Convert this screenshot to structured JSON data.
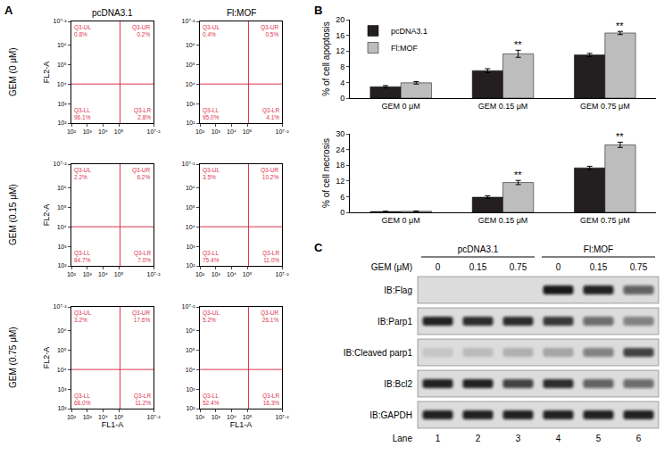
{
  "panel_labels": [
    "A",
    "B",
    "C"
  ],
  "chart_data": [
    {
      "type": "quadrant",
      "columns": [
        "pcDNA3.1",
        "Fl:MOF"
      ],
      "rows": [
        "GEM (0 μM)",
        "GEM (0.15 μM)",
        "GEM (0.75 μM)"
      ],
      "x_label": "FL1-A",
      "y_label": "FL2-A",
      "log": true,
      "xlim": [
        100,
        15848932
      ],
      "ylim": [
        100,
        15848932
      ],
      "xticks": [
        {
          "value": 100,
          "label": "10²"
        },
        {
          "value": 1000,
          "label": "10³"
        },
        {
          "value": 10000,
          "label": "10⁴"
        },
        {
          "value": 100000,
          "label": "10⁵"
        },
        {
          "value": 15848932,
          "label": "10⁷·²"
        }
      ],
      "yticks": [
        {
          "value": 100,
          "label": "10²"
        },
        {
          "value": 1000,
          "label": "10³"
        },
        {
          "value": 10000,
          "label": "10⁴"
        },
        {
          "value": 100000,
          "label": "10⁵"
        },
        {
          "value": 1000000,
          "label": "10⁶"
        },
        {
          "value": 15848932,
          "label": "10⁷·²"
        }
      ],
      "gate_x": 120000,
      "gate_y": 10000,
      "color": "#e0344f",
      "plots": [
        {
          "quadrants": {
            "names": [
              "Q3-UL",
              "Q3-UR",
              "Q3-LL",
              "Q3-LR"
            ],
            "values": [
              0.8,
              0.2,
              96.1,
              2.8
            ],
            "value_labels": [
              "0.8%",
              "0.2%",
              "96.1%",
              "2.8%"
            ]
          }
        },
        {
          "quadrants": {
            "names": [
              "Q3-UL",
              "Q3-UR",
              "Q3-LL",
              "Q3-LR"
            ],
            "values": [
              0.4,
              0.5,
              95.0,
              4.1
            ],
            "value_labels": [
              "0.4%",
              "0.5%",
              "95.0%",
              "4.1%"
            ]
          }
        },
        {
          "quadrants": {
            "names": [
              "Q3-UL",
              "Q3-UR",
              "Q3-LL",
              "Q3-LR"
            ],
            "values": [
              2.2,
              6.2,
              84.7,
              7.0
            ],
            "value_labels": [
              "2.2%",
              "6.2%",
              "84.7%",
              "7.0%"
            ]
          }
        },
        {
          "quadrants": {
            "names": [
              "Q3-UL",
              "Q3-UR",
              "Q3-LL",
              "Q3-LR"
            ],
            "values": [
              3.5,
              10.2,
              75.4,
              11.0
            ],
            "value_labels": [
              "3.5%",
              "10.2%",
              "75.4%",
              "11.0%"
            ]
          }
        },
        {
          "quadrants": {
            "names": [
              "Q3-UL",
              "Q3-UR",
              "Q3-LL",
              "Q3-LR"
            ],
            "values": [
              3.2,
              17.6,
              68.0,
              11.2
            ],
            "value_labels": [
              "3.2%",
              "17.6%",
              "68.0%",
              "11.2%"
            ]
          }
        },
        {
          "quadrants": {
            "names": [
              "Q3-UL",
              "Q3-UR",
              "Q3-LL",
              "Q3-LR"
            ],
            "values": [
              5.2,
              26.1,
              52.4,
              16.3
            ],
            "value_labels": [
              "5.2%",
              "26.1%",
              "52.4%",
              "16.3%"
            ]
          }
        }
      ]
    },
    {
      "type": "bar",
      "y_label": "% of cell apoptosis",
      "categories": [
        "GEM 0 μM",
        "GEM 0.15 μM",
        "GEM 0.75 μM"
      ],
      "series": [
        {
          "name": "pcDNA3.1",
          "color": "#231f20",
          "values": [
            2.9,
            7.0,
            11.0
          ],
          "errors": [
            0.3,
            0.5,
            0.4
          ]
        },
        {
          "name": "Fl:MOF",
          "color": "#bdbdbd",
          "values": [
            3.9,
            11.3,
            16.6
          ],
          "errors": [
            0.3,
            0.9,
            0.4
          ]
        }
      ],
      "ylim": [
        0,
        20
      ],
      "yticks": [
        0,
        4,
        8,
        12,
        16,
        20
      ],
      "legend": "upper left",
      "annotations": [
        {
          "text": "**",
          "category": "GEM 0.15 μM",
          "series": "Fl:MOF"
        },
        {
          "text": "**",
          "category": "GEM 0.75 μM",
          "series": "Fl:MOF"
        }
      ]
    },
    {
      "type": "bar",
      "y_label": "% of cell necrosis",
      "categories": [
        "GEM 0 μM",
        "GEM 0.15 μM",
        "GEM 0.75 μM"
      ],
      "series": [
        {
          "name": "pcDNA3.1",
          "color": "#231f20",
          "values": [
            0.3,
            5.8,
            17.0
          ],
          "errors": [
            0.1,
            0.5,
            0.6
          ]
        },
        {
          "name": "Fl:MOF",
          "color": "#bdbdbd",
          "values": [
            0.4,
            11.4,
            25.8
          ],
          "errors": [
            0.1,
            0.8,
            1.0
          ]
        }
      ],
      "ylim": [
        0,
        30
      ],
      "yticks": [
        0,
        6,
        12,
        18,
        24,
        30
      ],
      "annotations": [
        {
          "text": "**",
          "category": "GEM 0.15 μM",
          "series": "Fl:MOF"
        },
        {
          "text": "**",
          "category": "GEM 0.75 μM",
          "series": "Fl:MOF"
        }
      ]
    }
  ],
  "western_blot": {
    "groups": [
      "pcDNA3.1",
      "Fl:MOF"
    ],
    "dose_label": "GEM (μM)",
    "doses": [
      0,
      0.15,
      0.75,
      0,
      0.15,
      0.75
    ],
    "lane_label": "Lane",
    "lanes": [
      1,
      2,
      3,
      4,
      5,
      6
    ],
    "rows": [
      {
        "label": "IB:Flag",
        "intensity": [
          0,
          0,
          0,
          0.95,
          0.9,
          0.6
        ]
      },
      {
        "label": "IB:Parp1",
        "intensity": [
          0.9,
          0.85,
          0.85,
          0.8,
          0.55,
          0.45
        ]
      },
      {
        "label": "IB:Cleaved parp1",
        "intensity": [
          0.1,
          0.15,
          0.2,
          0.25,
          0.45,
          0.75
        ]
      },
      {
        "label": "IB:Bcl2",
        "intensity": [
          0.9,
          0.9,
          0.75,
          0.85,
          0.6,
          0.55
        ]
      },
      {
        "label": "IB:GAPDH",
        "intensity": [
          0.9,
          0.9,
          0.9,
          0.9,
          0.9,
          0.9
        ]
      }
    ]
  }
}
